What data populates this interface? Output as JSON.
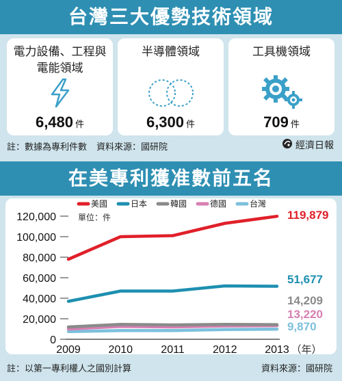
{
  "top_banner": {
    "title": "台灣三大優勢技術領域"
  },
  "cards": [
    {
      "title": "電力設備、工程與電能領域",
      "value": "6,480",
      "unit": "件",
      "icon": "lightning-icon"
    },
    {
      "title": "半導體領域",
      "value": "6,300",
      "unit": "件",
      "icon": "wafer-circles-icon"
    },
    {
      "title": "工具機領域",
      "value": "709",
      "unit": "件",
      "icon": "gears-icon"
    }
  ],
  "top_notes": {
    "note": "註：數據為專利件數",
    "source": "資料來源：國研院"
  },
  "brand": {
    "name": "經濟日報",
    "icon": "newspaper-logo-icon"
  },
  "bottom_banner": {
    "title": "在美專利獲准數前五名"
  },
  "bottom_notes": {
    "note": "註：以第一專利權人之國別計算",
    "source": "資料來源：國研院"
  },
  "chart_data": {
    "type": "line",
    "title": "在美專利獲准數前五名",
    "unit_label": "單位：件",
    "x_unit": "（年）",
    "x": [
      2009,
      2010,
      2011,
      2012,
      2013
    ],
    "ylim": [
      0,
      120000
    ],
    "yticks": [
      0,
      20000,
      40000,
      60000,
      80000,
      100000,
      120000
    ],
    "ytick_labels": [
      "0",
      "20,000",
      "40,000",
      "60,000",
      "80,000",
      "100,000",
      "120,000"
    ],
    "legend_position": "top",
    "series": [
      {
        "name": "美國",
        "color": "#e0202a",
        "values": [
          78000,
          100000,
          101000,
          113000,
          119879
        ],
        "end_label": "119,879"
      },
      {
        "name": "日本",
        "color": "#1e8fb0",
        "values": [
          37000,
          47000,
          47000,
          52000,
          51677
        ],
        "end_label": "51,677"
      },
      {
        "name": "韓國",
        "color": "#8a8a8a",
        "values": [
          12000,
          14500,
          14000,
          14500,
          14209
        ],
        "end_label": "14,209"
      },
      {
        "name": "德國",
        "color": "#d77fb3",
        "values": [
          10000,
          12500,
          12000,
          13000,
          13220
        ],
        "end_label": "13,220"
      },
      {
        "name": "台灣",
        "color": "#7cc0dc",
        "values": [
          7500,
          8500,
          8500,
          9500,
          9870
        ],
        "end_label": "9,870"
      }
    ]
  }
}
